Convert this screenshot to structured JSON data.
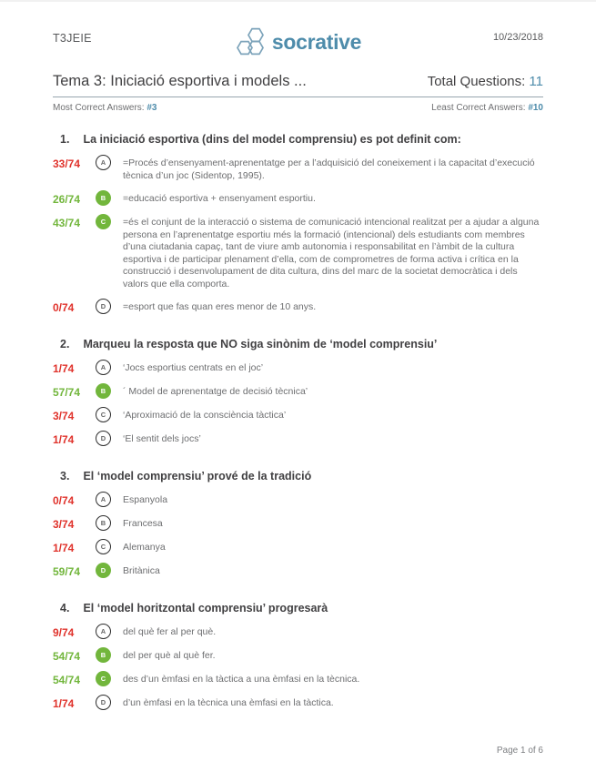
{
  "header": {
    "room": "T3JEIE",
    "logo_text": "socrative",
    "date": "10/23/2018"
  },
  "quiz": {
    "title": "Tema 3: Iniciació esportiva i models ...",
    "total_questions_label": "Total Questions:",
    "total_questions": "11",
    "most_label": "Most Correct Answers:",
    "most_value": "#3",
    "least_label": "Least Correct Answers:",
    "least_value": "#10"
  },
  "colors": {
    "accent_blue": "#4e8cab",
    "correct_green": "#72b63c",
    "incorrect_red": "#e0332c"
  },
  "questions": [
    {
      "number": "1.",
      "title": "La iniciació esportiva (dins del model comprensiu) es pot definit com:",
      "options": [
        {
          "letter": "A",
          "count": "33/74",
          "correct": false,
          "text": "=Procés d’ensenyament-aprenentatge per a l’adquisició del coneixement i la capacitat d’execució tècnica d’un joc (Sidentop, 1995)."
        },
        {
          "letter": "B",
          "count": "26/74",
          "correct": true,
          "text": "=educació esportiva + ensenyament esportiu."
        },
        {
          "letter": "C",
          "count": "43/74",
          "correct": true,
          "text": "=és el conjunt de la interacció o sistema de comunicació intencional realitzat per a ajudar a alguna persona en l’aprenentatge esportiu més la formació (intencional) dels estudiants com membres d’una ciutadania capaç, tant de viure amb autonomia i responsabilitat en l’àmbit de la cultura esportiva i de participar plenament d’ella, com de comprometres de forma activa i crítica en la construcció i desenvolupament de dita cultura, dins del marc de la societat democràtica i dels valors que ella comporta."
        },
        {
          "letter": "D",
          "count": "0/74",
          "correct": false,
          "text": "=esport que fas quan eres menor de 10 anys."
        }
      ]
    },
    {
      "number": "2.",
      "title": "Marqueu la resposta que NO siga sinònim de ‘model comprensiu’",
      "options": [
        {
          "letter": "A",
          "count": "1/74",
          "correct": false,
          "text": "‘Jocs esportius centrats en el joc’"
        },
        {
          "letter": "B",
          "count": "57/74",
          "correct": true,
          "text": "´ Model de aprenentatge de decisió tècnica’"
        },
        {
          "letter": "C",
          "count": "3/74",
          "correct": false,
          "text": "‘Aproximació de la consciència tàctica’"
        },
        {
          "letter": "D",
          "count": "1/74",
          "correct": false,
          "text": "‘El sentit dels jocs’"
        }
      ]
    },
    {
      "number": "3.",
      "title": "El ‘model comprensiu’ prové de la tradició",
      "options": [
        {
          "letter": "A",
          "count": "0/74",
          "correct": false,
          "text": "Espanyola"
        },
        {
          "letter": "B",
          "count": "3/74",
          "correct": false,
          "text": "Francesa"
        },
        {
          "letter": "C",
          "count": "1/74",
          "correct": false,
          "text": "Alemanya"
        },
        {
          "letter": "D",
          "count": "59/74",
          "correct": true,
          "text": "Britànica"
        }
      ]
    },
    {
      "number": "4.",
      "title": "El ‘model horitzontal comprensiu’ progresarà",
      "options": [
        {
          "letter": "A",
          "count": "9/74",
          "correct": false,
          "text": "del què fer al per què."
        },
        {
          "letter": "B",
          "count": "54/74",
          "correct": true,
          "text": "del per què al què fer."
        },
        {
          "letter": "C",
          "count": "54/74",
          "correct": true,
          "text": "des d’un èmfasi en la tàctica a una èmfasi en la tècnica."
        },
        {
          "letter": "D",
          "count": "1/74",
          "correct": false,
          "text": "d’un èmfasi en la tècnica una èmfasi en la tàctica."
        }
      ]
    }
  ],
  "footer": {
    "page_label": "Page 1 of 6"
  }
}
